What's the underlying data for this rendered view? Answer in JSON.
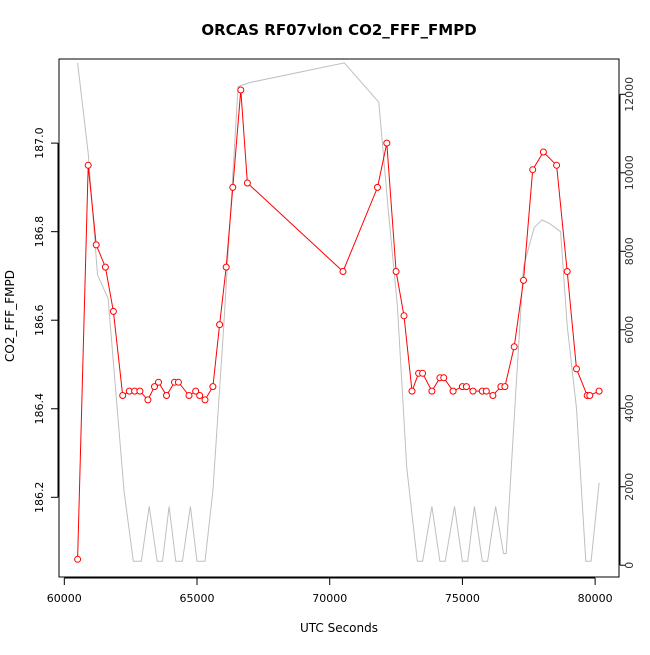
{
  "chart_data": {
    "type": "line",
    "title": "ORCAS RF07vlon CO2_FFF_FMPD",
    "xlabel": "UTC Seconds",
    "ylabel": "CO2_FFF_FMPD",
    "xlim": [
      59800,
      80900
    ],
    "ylim": [
      186.02,
      187.19
    ],
    "y2lim": [
      -300,
      12900
    ],
    "x_ticks": [
      "60000",
      "65000",
      "70000",
      "75000",
      "80000"
    ],
    "y_ticks": [
      "186.2",
      "186.4",
      "186.6",
      "186.8",
      "187.0"
    ],
    "y2_ticks": [
      "0",
      "2000",
      "4000",
      "6000",
      "8000",
      "10000",
      "12000"
    ],
    "grid": false,
    "series": [
      {
        "axis": "left",
        "color": "#ff0000",
        "marker": "open-circle",
        "x": [
          60500,
          60900,
          61200,
          61550,
          61850,
          62200,
          62450,
          62650,
          62850,
          63150,
          63400,
          63550,
          63850,
          64150,
          64300,
          64700,
          64950,
          65100,
          65300,
          65600,
          65850,
          66100,
          66350,
          66650,
          66900,
          70500,
          71800,
          72150,
          72500,
          72800,
          73100,
          73350,
          73500,
          73850,
          74150,
          74300,
          74650,
          75000,
          75150,
          75400,
          75750,
          75900,
          76150,
          76450,
          76600,
          76950,
          77300,
          77650,
          78050,
          78550,
          78950,
          79300,
          79700,
          79800,
          80150
        ],
        "y": [
          186.06,
          186.95,
          186.77,
          186.72,
          186.62,
          186.43,
          186.44,
          186.44,
          186.44,
          186.42,
          186.45,
          186.46,
          186.43,
          186.46,
          186.46,
          186.43,
          186.44,
          186.43,
          186.42,
          186.45,
          186.59,
          186.72,
          186.9,
          187.12,
          186.91,
          186.71,
          186.9,
          187.0,
          186.71,
          186.61,
          186.44,
          186.48,
          186.48,
          186.44,
          186.47,
          186.47,
          186.44,
          186.45,
          186.45,
          186.44,
          186.44,
          186.44,
          186.43,
          186.45,
          186.45,
          186.54,
          186.69,
          186.94,
          186.98,
          186.95,
          186.71,
          186.49,
          186.43,
          186.43,
          186.44
        ]
      },
      {
        "axis": "right",
        "color": "#bfbfbf",
        "marker": "none",
        "x": [
          60500,
          60900,
          61250,
          61650,
          62250,
          62600,
          62900,
          63200,
          63500,
          63700,
          63950,
          64200,
          64450,
          64750,
          65000,
          65300,
          65600,
          66000,
          66550,
          67000,
          70550,
          71850,
          72200,
          72550,
          72900,
          73300,
          73500,
          73850,
          74150,
          74350,
          74700,
          75000,
          75200,
          75450,
          75750,
          75950,
          76250,
          76550,
          76650,
          77000,
          77300,
          77700,
          78000,
          78300,
          78700,
          78950,
          79300,
          79650,
          79850,
          80150
        ],
        "y": [
          12800,
          10500,
          7400,
          6800,
          1900,
          100,
          100,
          1500,
          100,
          100,
          1500,
          100,
          100,
          1500,
          100,
          100,
          1900,
          6000,
          12200,
          12300,
          12800,
          11800,
          9100,
          6600,
          2500,
          100,
          100,
          1500,
          100,
          100,
          1500,
          100,
          100,
          1500,
          100,
          100,
          1500,
          300,
          300,
          4300,
          7600,
          8600,
          8800,
          8700,
          8500,
          6100,
          4000,
          100,
          100,
          2100
        ]
      }
    ]
  }
}
